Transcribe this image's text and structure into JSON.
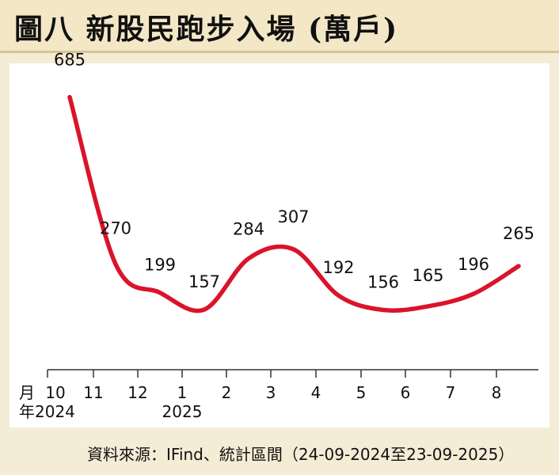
{
  "title": "圖八  新股民跑步入場 (萬戶)",
  "source": "資料來源：IFind、統計區間（24-09-2024至23-09-2025）",
  "colors": {
    "line": "#d9142b",
    "title_bg": "#f3e7c6",
    "frame_bg": "#f5ecd6"
  },
  "chart_data": {
    "type": "line",
    "title": "新股民跑步入場 (萬戶)",
    "x_unit_label": "月",
    "year_unit_label": "年",
    "categories": [
      "10",
      "11",
      "12",
      "1",
      "2",
      "3",
      "4",
      "5",
      "6",
      "7",
      "8"
    ],
    "year_labels": [
      {
        "category": "10",
        "text": "2024"
      },
      {
        "category": "1",
        "text": "2025"
      }
    ],
    "values": [
      685,
      270,
      199,
      157,
      284,
      307,
      192,
      156,
      165,
      196,
      265
    ],
    "grid": false,
    "legend": "none"
  }
}
